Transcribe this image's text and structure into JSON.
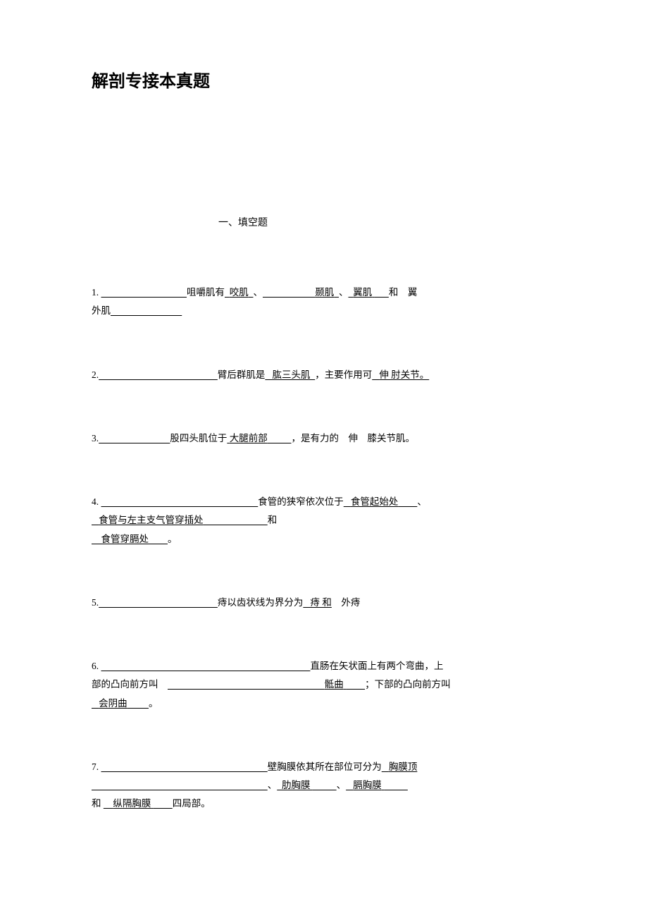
{
  "title": "解剖专接本真题",
  "section_header": "一、填空题",
  "questions": {
    "q1": {
      "num": "1.",
      "t1": "咀嚼肌有",
      "a1": "咬肌",
      "sep1": "、",
      "a2": "颞肌",
      "sep2": "、",
      "a3": "翼肌",
      "t2": "和",
      "a4": "翼",
      "a4b": "外肌"
    },
    "q2": {
      "num": "2.",
      "t1": "臂后群肌是",
      "a1": "肱三头肌",
      "t2": "，主要作用可",
      "a2": "伸 肘关节。"
    },
    "q3": {
      "num": "3.",
      "t1": "股四头肌位于",
      "a1": "大腿前部",
      "t2": "，是有力的",
      "a2": "伸",
      "t3": "膝关节肌。"
    },
    "q4": {
      "num": "4.",
      "t1": "食管的狭窄依次位于",
      "a1": "食管起始处",
      "sep1": "、",
      "a2": "食管与左主支气管穿插处",
      "t2": "和",
      "a3": "食管穿膈处",
      "t3": "。"
    },
    "q5": {
      "num": "5.",
      "t1": "痔以齿状线为界分为",
      "a1": "痔 和",
      "a2": "外痔"
    },
    "q6": {
      "num": "6.",
      "t1": "直肠在矢状面上有两个弯曲，上",
      "t2": "部的凸向前方叫",
      "a1": "骶曲",
      "t3": "；下部的凸向前方叫",
      "a2": "会阴曲",
      "t4": "。"
    },
    "q7": {
      "num": "7.",
      "t1": "壁胸膜依其所在部位可分为",
      "a1": "胸膜顶",
      "sep1": "、",
      "a2": "肋胸膜",
      "sep2": "、",
      "a3": "膈胸膜",
      "t2": "和",
      "a4": "纵隔胸膜",
      "t3": "四局部。"
    }
  },
  "style": {
    "background_color": "#ffffff",
    "text_color": "#000000",
    "title_fontsize": 24,
    "body_fontsize": 13.5,
    "font_family": "SimSun"
  }
}
